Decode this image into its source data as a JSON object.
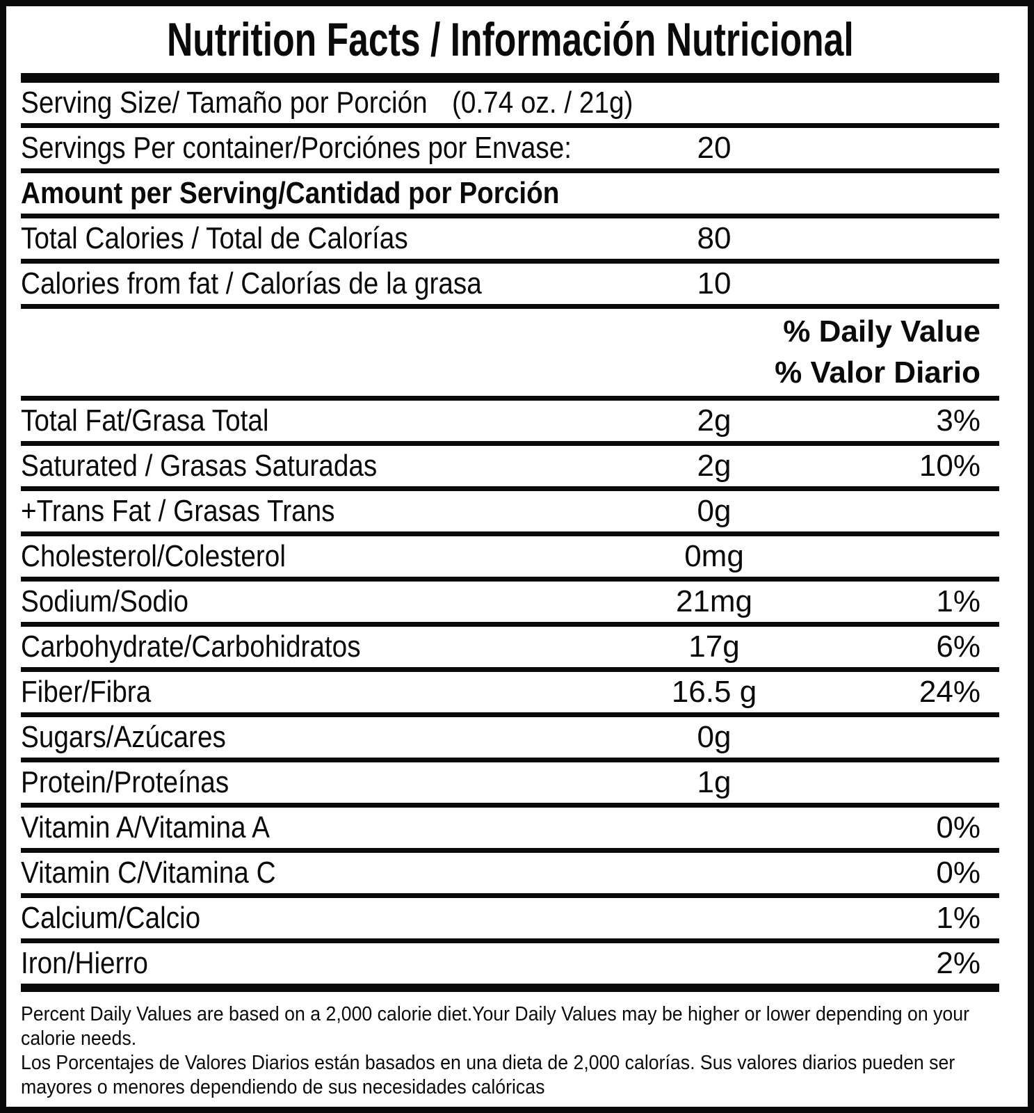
{
  "title": "Nutrition Facts / Información Nutricional",
  "serving_size": {
    "label": "Serving Size/ Tamaño por Porción",
    "value": "(0.74 oz. / 21g)"
  },
  "servings_per_container": {
    "label": "Servings Per container/Porciónes por Envase:",
    "value": "20"
  },
  "section_header": "Amount per Serving/Cantidad por Porción",
  "calories_rows": [
    {
      "label": "Total Calories / Total de Calorías",
      "value": "80"
    },
    {
      "label": "Calories from fat / Calorías de la grasa",
      "value": "10"
    }
  ],
  "daily_value_header": {
    "line1": "% Daily Value",
    "line2": "% Valor Diario"
  },
  "nutrients": [
    {
      "label": "Total Fat/Grasa Total",
      "amount": "2g",
      "dv": "3%"
    },
    {
      "label": "Saturated / Grasas Saturadas",
      "amount": "2g",
      "dv": "10%"
    },
    {
      "label": "+Trans Fat / Grasas Trans",
      "amount": "0g",
      "dv": ""
    },
    {
      "label": "Cholesterol/Colesterol",
      "amount": "0mg",
      "dv": ""
    },
    {
      "label": "Sodium/Sodio",
      "amount": "21mg",
      "dv": "1%"
    },
    {
      "label": "Carbohydrate/Carbohidratos",
      "amount": "17g",
      "dv": "6%"
    },
    {
      "label": "Fiber/Fibra",
      "amount": "16.5 g",
      "dv": "24%"
    },
    {
      "label": "Sugars/Azúcares",
      "amount": "0g",
      "dv": ""
    },
    {
      "label": "Protein/Proteínas",
      "amount": "1g",
      "dv": ""
    },
    {
      "label": "Vitamin A/Vitamina A",
      "amount": "",
      "dv": "0%"
    },
    {
      "label": "Vitamin C/Vitamina C",
      "amount": "",
      "dv": "0%"
    },
    {
      "label": "Calcium/Calcio",
      "amount": "",
      "dv": "1%"
    },
    {
      "label": "Iron/Hierro",
      "amount": "",
      "dv": "2%"
    }
  ],
  "footnote": {
    "lines": [
      "Percent Daily Values are based on a 2,000 calorie diet.Your Daily Values may be higher or lower depending on your",
      "calorie needs.",
      "Los Porcentajes de Valores Diarios están basados en una dieta de 2,000 calorías. Sus valores diarios pueden ser",
      "mayores o menores dependiendo de sus necesidades calóricas"
    ]
  }
}
